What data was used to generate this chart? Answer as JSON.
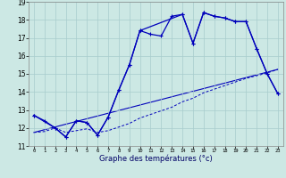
{
  "xlabel": "Graphe des températures (°c)",
  "background_color": "#cce8e4",
  "grid_color": "#a8cccc",
  "line_color": "#0000bb",
  "xlim": [
    -0.5,
    23.5
  ],
  "ylim": [
    11,
    19
  ],
  "yticks": [
    11,
    12,
    13,
    14,
    15,
    16,
    17,
    18,
    19
  ],
  "xticks": [
    0,
    1,
    2,
    3,
    4,
    5,
    6,
    7,
    8,
    9,
    10,
    11,
    12,
    13,
    14,
    15,
    16,
    17,
    18,
    19,
    20,
    21,
    22,
    23
  ],
  "series1_x": [
    0,
    1,
    2,
    3,
    4,
    5,
    6,
    7,
    8,
    9,
    10,
    11,
    12,
    13,
    14,
    15,
    16,
    17,
    18,
    19,
    20,
    21,
    22,
    23
  ],
  "series1_y": [
    12.7,
    12.4,
    12.0,
    11.5,
    12.4,
    12.3,
    11.6,
    12.6,
    14.1,
    15.5,
    17.4,
    17.2,
    17.1,
    18.2,
    18.3,
    16.7,
    18.4,
    18.2,
    18.1,
    17.9,
    17.9,
    16.4,
    15.0,
    13.9
  ],
  "series2_x": [
    0,
    1,
    2,
    3,
    4,
    5,
    6,
    7,
    8,
    9,
    10,
    11,
    12,
    13,
    14,
    15,
    16,
    17,
    18,
    19,
    20,
    21,
    22,
    23
  ],
  "series2_y": [
    11.75,
    11.8,
    12.0,
    11.75,
    11.85,
    11.95,
    11.75,
    11.85,
    12.05,
    12.25,
    12.55,
    12.75,
    12.95,
    13.15,
    13.45,
    13.65,
    13.95,
    14.15,
    14.35,
    14.55,
    14.75,
    14.9,
    15.05,
    15.25
  ],
  "series3_x": [
    0,
    23
  ],
  "series3_y": [
    11.75,
    15.25
  ],
  "series4_x": [
    0,
    2,
    3,
    4,
    5,
    6,
    7,
    8,
    9,
    10,
    14,
    15,
    16,
    17,
    18,
    19,
    20,
    21,
    22,
    23
  ],
  "series4_y": [
    12.7,
    12.0,
    11.5,
    12.4,
    12.3,
    11.6,
    12.6,
    14.1,
    15.5,
    17.4,
    18.3,
    16.7,
    18.4,
    18.2,
    18.1,
    17.9,
    17.9,
    16.4,
    15.0,
    13.9
  ]
}
